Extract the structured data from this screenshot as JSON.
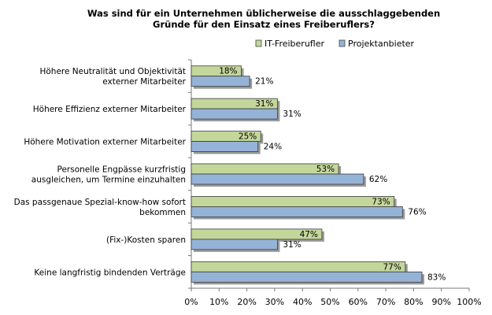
{
  "chart_data": {
    "type": "bar",
    "orientation": "horizontal",
    "title_lines": [
      "Was sind für ein Unternehmen üblicherweise die ausschlaggebenden",
      "Gründe für den Einsatz eines Freiberuflers?"
    ],
    "categories": [
      [
        "Höhere Neutralität und Objektivität",
        "externer Mitarbeiter"
      ],
      [
        "Höhere Effizienz externer Mitarbeiter"
      ],
      [
        "Höhere Motivation externer Mitarbeiter"
      ],
      [
        "Personelle Engpässe kurzfristig",
        "ausgleichen, um Termine einzuhalten"
      ],
      [
        "Das passgenaue Spezial-know-how sofort",
        "bekommen"
      ],
      [
        "(Fix-)Kosten sparen"
      ],
      [
        "Keine langfristig bindenden Verträge"
      ]
    ],
    "series": [
      {
        "name": "IT-Freiberufler",
        "color": "#c4d79b",
        "values": [
          18,
          31,
          25,
          53,
          73,
          47,
          77
        ],
        "labels": [
          "18%",
          "31%",
          "25%",
          "53%",
          "73%",
          "47%",
          "77%"
        ]
      },
      {
        "name": "Projektanbieter",
        "color": "#95b3d7",
        "values": [
          21,
          31,
          24,
          62,
          76,
          31,
          83
        ],
        "labels": [
          "21%",
          "31%",
          "24%",
          "62%",
          "76%",
          "31%",
          "83%"
        ]
      }
    ],
    "x_ticks": [
      "0%",
      "10%",
      "20%",
      "30%",
      "40%",
      "50%",
      "60%",
      "70%",
      "80%",
      "90%",
      "100%"
    ],
    "xlim": [
      0,
      100
    ],
    "legend_position": "top-right",
    "grid": false
  }
}
